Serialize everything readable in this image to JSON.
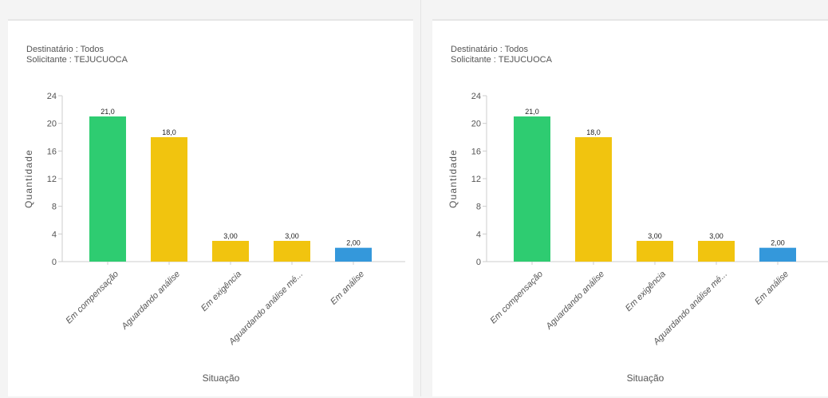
{
  "chart_data": [
    {
      "type": "bar",
      "subtitle_lines": [
        "Destinatário : Todos",
        "Solicitante : TEJUCUOCA"
      ],
      "categories": [
        "Em compensação",
        "Aguardando análise",
        "Em exigência",
        "Aguardando análise mé...",
        "Em análise"
      ],
      "values": [
        21,
        18,
        3,
        3,
        2
      ],
      "value_labels": [
        "21,0",
        "18,0",
        "3,00",
        "3,00",
        "2,00"
      ],
      "colors": [
        "#2ecc71",
        "#f1c40f",
        "#f1c40f",
        "#f1c40f",
        "#3498db"
      ],
      "xlabel": "Situação",
      "ylabel": "Quantidade",
      "ylim": [
        0,
        24
      ],
      "yticks": [
        0,
        4,
        8,
        12,
        16,
        20,
        24
      ],
      "grid": false,
      "legend": "none"
    },
    {
      "type": "bar",
      "subtitle_lines": [
        "Destinatário : Todos",
        "Solicitante : TEJUCUOCA"
      ],
      "categories": [
        "Em compensação",
        "Aguardando análise",
        "Em exigência",
        "Aguardando análise mé...",
        "Em análise"
      ],
      "values": [
        21,
        18,
        3,
        3,
        2
      ],
      "value_labels": [
        "21,0",
        "18,0",
        "3,00",
        "3,00",
        "2,00"
      ],
      "colors": [
        "#2ecc71",
        "#f1c40f",
        "#f1c40f",
        "#f1c40f",
        "#3498db"
      ],
      "xlabel": "Situação",
      "ylabel": "Quantidade",
      "ylim": [
        0,
        24
      ],
      "yticks": [
        0,
        4,
        8,
        12,
        16,
        20,
        24
      ],
      "grid": false,
      "legend": "none"
    }
  ]
}
